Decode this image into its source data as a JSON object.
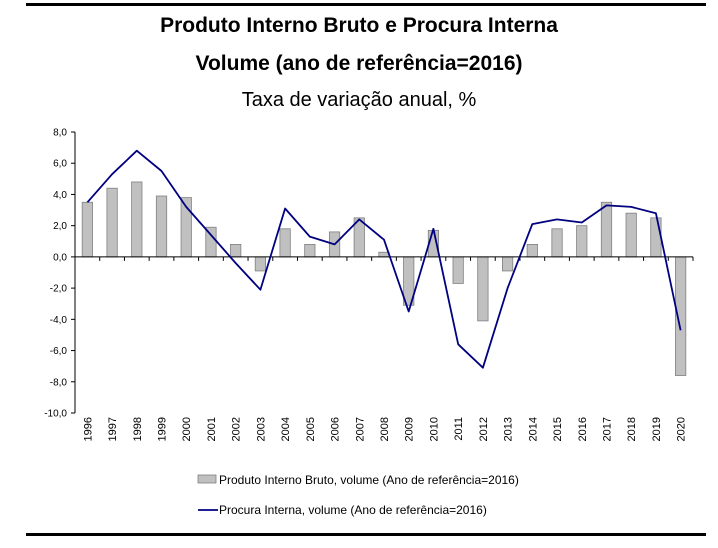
{
  "chart_data": {
    "type": "bar",
    "title": "Produto Interno Bruto e Procura Interna",
    "subtitle": "Volume (ano de referência=2016)",
    "subtitle2": "Taxa de variação anual, %",
    "xlabel": "",
    "ylabel": "",
    "ylim": [
      -10,
      8
    ],
    "yticks": [
      8,
      6,
      4,
      2,
      0,
      -2,
      -4,
      -6,
      -8,
      -10
    ],
    "ytick_labels": [
      "8,0",
      "6,0",
      "4,0",
      "2,0",
      "0,0",
      "-2,0",
      "-4,0",
      "-6,0",
      "-8,0",
      "-10,0"
    ],
    "categories": [
      "1996",
      "1997",
      "1998",
      "1999",
      "2000",
      "2001",
      "2002",
      "2003",
      "2004",
      "2005",
      "2006",
      "2007",
      "2008",
      "2009",
      "2010",
      "2011",
      "2012",
      "2013",
      "2014",
      "2015",
      "2016",
      "2017",
      "2018",
      "2019",
      "2020"
    ],
    "legend_position": "bottom",
    "grid": false,
    "series": [
      {
        "name": "Produto Interno Bruto, volume (Ano de referência=2016)",
        "type": "bar",
        "color": "#c0c0c0",
        "values": [
          3.5,
          4.4,
          4.8,
          3.9,
          3.8,
          1.9,
          0.8,
          -0.9,
          1.8,
          0.8,
          1.6,
          2.5,
          0.3,
          -3.1,
          1.7,
          -1.7,
          -4.1,
          -0.9,
          0.8,
          1.8,
          2.0,
          3.5,
          2.8,
          2.5,
          -7.6
        ]
      },
      {
        "name": "Procura Interna, volume (Ano de referência=2016)",
        "type": "line",
        "color": "#000080",
        "values": [
          3.5,
          5.3,
          6.8,
          5.5,
          3.2,
          1.4,
          -0.4,
          -2.1,
          3.1,
          1.3,
          0.8,
          2.4,
          1.1,
          -3.5,
          1.8,
          -5.6,
          -7.1,
          -2.0,
          2.1,
          2.4,
          2.2,
          3.3,
          3.2,
          2.8,
          -4.7
        ]
      }
    ]
  }
}
